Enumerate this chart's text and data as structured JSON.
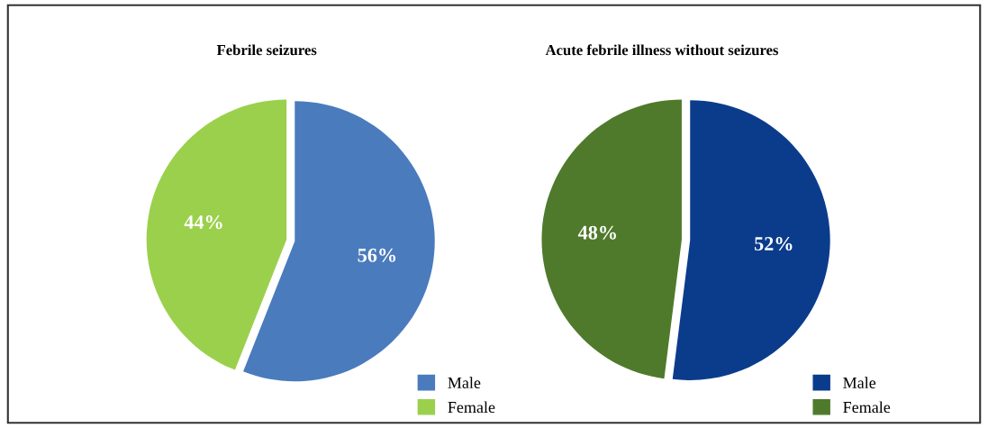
{
  "chart_data": [
    {
      "type": "pie",
      "title": "Febrile seizures",
      "categories": [
        "Male",
        "Female"
      ],
      "values": [
        56,
        44
      ],
      "colors": [
        "#4a7bbd",
        "#9bd04c"
      ],
      "value_labels": [
        "56%",
        "44%"
      ],
      "legend": "bottom right"
    },
    {
      "type": "pie",
      "title": "Acute febrile illness without seizures",
      "categories": [
        "Male",
        "Female"
      ],
      "values": [
        52,
        48
      ],
      "colors": [
        "#0b3c8c",
        "#4f7a2b"
      ],
      "value_labels": [
        "52%",
        "48%"
      ],
      "legend": "bottom right"
    }
  ]
}
